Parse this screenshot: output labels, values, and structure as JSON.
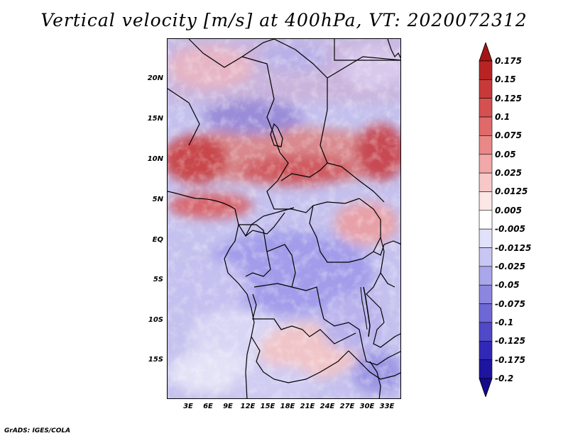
{
  "title": "Vertical velocity [m/s] at 400hPa, VT: 2020072312",
  "footer": "GrADS: IGES/COLA",
  "map": {
    "lat_labels": [
      "20N",
      "15N",
      "10N",
      "5N",
      "EQ",
      "5S",
      "10S",
      "15S"
    ],
    "lon_labels": [
      "3E",
      "6E",
      "9E",
      "12E",
      "15E",
      "18E",
      "21E",
      "24E",
      "27E",
      "30E",
      "33E"
    ],
    "lon_range": [
      0.5,
      34.5
    ],
    "lat_range": [
      -20,
      25
    ]
  },
  "colorbar": {
    "labels": [
      "0.175",
      "0.15",
      "0.125",
      "0.1",
      "0.075",
      "0.05",
      "0.025",
      "0.0125",
      "0.005",
      "-0.005",
      "-0.0125",
      "-0.025",
      "-0.05",
      "-0.075",
      "-0.1",
      "-0.125",
      "-0.175",
      "-0.2"
    ],
    "colors": [
      "#a51515",
      "#b82424",
      "#c83a3a",
      "#d55050",
      "#e06a6a",
      "#ea8888",
      "#f2a8a8",
      "#f8c8c8",
      "#fde6e6",
      "#ffffff",
      "#e2e1fa",
      "#c8c6f2",
      "#aaa6ea",
      "#8c86e0",
      "#6e68d6",
      "#5049c8",
      "#3228b8",
      "#1e149f",
      "#140a8c"
    ]
  }
}
